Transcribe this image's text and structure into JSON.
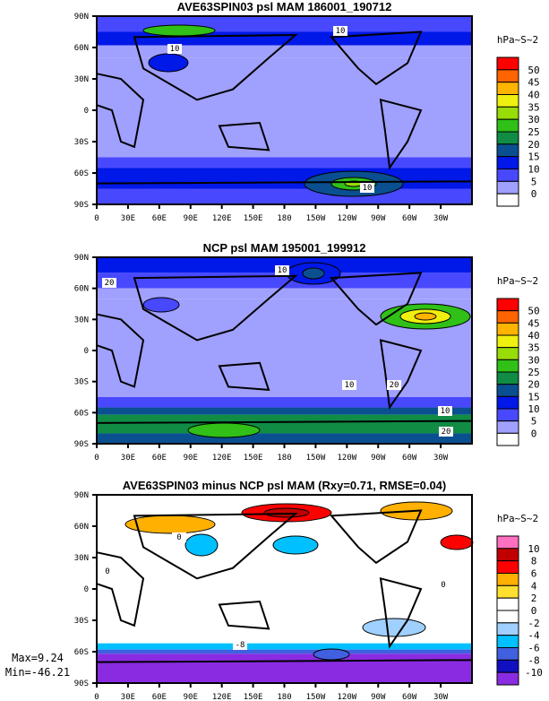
{
  "chart_data": [
    {
      "type": "heatmap",
      "title": "AVE63SPIN03 psl MAM 186001_190712",
      "units": "hPa~S~2",
      "x_ticks": [
        "0",
        "30E",
        "60E",
        "90E",
        "120E",
        "150E",
        "180",
        "150W",
        "120W",
        "90W",
        "60W",
        "30W"
      ],
      "y_ticks": [
        "90N",
        "60N",
        "30N",
        "0",
        "30S",
        "60S",
        "90S"
      ],
      "levels": [
        "0",
        "5",
        "10",
        "15",
        "20",
        "25",
        "30",
        "35",
        "40",
        "45",
        "50"
      ],
      "colors": [
        "#ffffff",
        "#a0a0ff",
        "#4848ff",
        "#0018e8",
        "#0a5090",
        "#108c44",
        "#30c018",
        "#98dc08",
        "#f0f010",
        "#ffb400",
        "#ff6400",
        "#ff0000"
      ],
      "contour_labels": [
        "10",
        "10",
        "10"
      ]
    },
    {
      "type": "heatmap",
      "title": "NCP psl MAM 195001_199912",
      "units": "hPa~S~2",
      "x_ticks": [
        "0",
        "30E",
        "60E",
        "90E",
        "120E",
        "150E",
        "180",
        "150W",
        "120W",
        "90W",
        "60W",
        "30W"
      ],
      "y_ticks": [
        "90N",
        "60N",
        "30N",
        "0",
        "30S",
        "60S",
        "90S"
      ],
      "levels": [
        "0",
        "5",
        "10",
        "15",
        "20",
        "25",
        "30",
        "35",
        "40",
        "45",
        "50"
      ],
      "colors": [
        "#ffffff",
        "#a0a0ff",
        "#4848ff",
        "#0018e8",
        "#0a5090",
        "#108c44",
        "#30c018",
        "#98dc08",
        "#f0f010",
        "#ffb400",
        "#ff6400",
        "#ff0000"
      ],
      "contour_labels": [
        "10",
        "20",
        "10",
        "20",
        "10",
        "20"
      ]
    },
    {
      "type": "heatmap",
      "title": "AVE63SPIN03 minus NCP psl MAM (Rxy=0.71, RMSE=0.04)",
      "units": "hPa~S~2",
      "x_ticks": [
        "0",
        "30E",
        "60E",
        "90E",
        "120E",
        "150E",
        "180",
        "150W",
        "120W",
        "90W",
        "60W",
        "30W"
      ],
      "y_ticks": [
        "90N",
        "60N",
        "30N",
        "0",
        "30S",
        "60S",
        "90S"
      ],
      "levels": [
        "-10",
        "-8",
        "-6",
        "-4",
        "-2",
        "0",
        "2",
        "4",
        "6",
        "8",
        "10"
      ],
      "colors": [
        "#8a2be2",
        "#1010c0",
        "#4060e0",
        "#00c0ff",
        "#a0d0ff",
        "#ffffff",
        "#ffffff",
        "#ffe030",
        "#ffb000",
        "#ff0000",
        "#c00000",
        "#ff70c0"
      ],
      "contour_labels": [
        "0",
        "0",
        "0",
        "-8"
      ],
      "max_label": "Max=9.24",
      "min_label": "Min=-46.21"
    }
  ]
}
